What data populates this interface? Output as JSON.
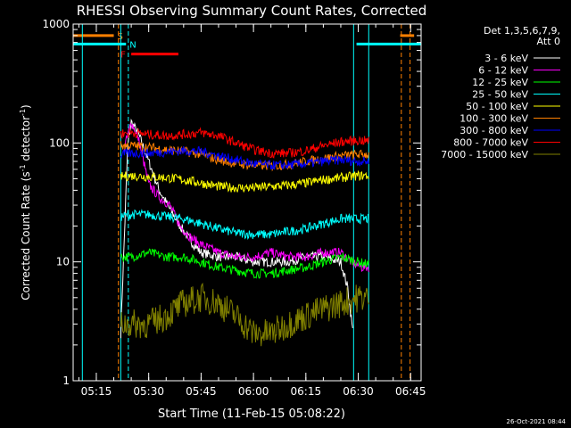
{
  "chart_data": {
    "type": "line",
    "title": "RHESSI Observing Summary Count Rates, Corrected",
    "xlabel": "Start Time (11-Feb-15 05:08:22)",
    "ylabel": "Corrected Count Rate (s⁻¹ detector⁻¹)",
    "ylabel_parts": {
      "main": "Corrected Count Rate (s",
      "sup1": "-1",
      "mid": " detector",
      "sup2": "-1",
      "end": ")"
    },
    "yscale": "log",
    "ylim": [
      1,
      1000
    ],
    "xlim": [
      "05:08:22",
      "06:48:00"
    ],
    "x_ticks": [
      "05:15",
      "05:30",
      "05:45",
      "06:00",
      "06:15",
      "06:30",
      "06:45"
    ],
    "y_ticks": [
      "1",
      "10",
      "100",
      "1000"
    ],
    "legend_header": [
      "Det 1,3,5,6,7,9,",
      "Att 0"
    ],
    "legend_position": "right",
    "timestamp": "26-Oct-2021 08:44",
    "series": [
      {
        "name": "3 - 6 keV",
        "color": "#ffffff",
        "x": [
          "05:22:00",
          "05:24:00",
          "05:25:00",
          "05:27:00",
          "05:30:00",
          "05:33:00",
          "05:36:00",
          "05:39:00",
          "05:42:00",
          "05:45:00",
          "05:50:00",
          "05:55:00",
          "06:00:00",
          "06:05:00",
          "06:10:00",
          "06:15:00",
          "06:20:00",
          "06:25:00",
          "06:27:00",
          "06:28:30"
        ],
        "y": [
          2.5,
          95,
          150,
          120,
          70,
          40,
          28,
          20,
          15,
          12,
          11,
          11,
          10,
          10,
          10,
          11,
          11,
          10,
          6,
          2.5
        ]
      },
      {
        "name": "6 - 12 keV",
        "color": "#ff00ff",
        "x": [
          "05:23:00",
          "05:25:00",
          "05:27:00",
          "05:30:00",
          "05:33:00",
          "05:36:00",
          "05:39:00",
          "05:42:00",
          "05:45:00",
          "05:50:00",
          "05:55:00",
          "06:00:00",
          "06:05:00",
          "06:10:00",
          "06:15:00",
          "06:20:00",
          "06:25:00",
          "06:28:00",
          "06:31:00",
          "06:33:00"
        ],
        "y": [
          90,
          150,
          110,
          45,
          35,
          30,
          20,
          16,
          14,
          12,
          11,
          11,
          12,
          11,
          11,
          12,
          12,
          10,
          9,
          9
        ]
      },
      {
        "name": "12 - 25 keV",
        "color": "#00ff00",
        "x": [
          "05:22:00",
          "05:25:00",
          "05:30:00",
          "05:35:00",
          "05:40:00",
          "05:45:00",
          "05:50:00",
          "05:55:00",
          "06:00:00",
          "06:05:00",
          "06:10:00",
          "06:15:00",
          "06:20:00",
          "06:25:00",
          "06:30:00",
          "06:33:00"
        ],
        "y": [
          11,
          11,
          12,
          11,
          11,
          10,
          9,
          8.5,
          8,
          8,
          8.5,
          9,
          10,
          11,
          10,
          9.5
        ]
      },
      {
        "name": "25 - 50 keV",
        "color": "#00ffff",
        "x": [
          "05:22:00",
          "05:25:00",
          "05:30:00",
          "05:35:00",
          "05:40:00",
          "05:45:00",
          "05:50:00",
          "05:55:00",
          "06:00:00",
          "06:05:00",
          "06:10:00",
          "06:15:00",
          "06:20:00",
          "06:25:00",
          "06:30:00",
          "06:33:00"
        ],
        "y": [
          24,
          25,
          25,
          24,
          23,
          21,
          19,
          17.5,
          17,
          17,
          18,
          19,
          21,
          23,
          23,
          23
        ]
      },
      {
        "name": "50 - 100 keV",
        "color": "#ffff00",
        "x": [
          "05:22:00",
          "05:25:00",
          "05:30:00",
          "05:35:00",
          "05:40:00",
          "05:45:00",
          "05:50:00",
          "05:55:00",
          "06:00:00",
          "06:05:00",
          "06:10:00",
          "06:15:00",
          "06:20:00",
          "06:25:00",
          "06:30:00",
          "06:33:00"
        ],
        "y": [
          52,
          53,
          52,
          51,
          49,
          46,
          43,
          42,
          42,
          43,
          44,
          46,
          49,
          51,
          53,
          53
        ]
      },
      {
        "name": "100 - 300 keV",
        "color": "#ff8000",
        "x": [
          "05:22:00",
          "05:25:00",
          "05:30:00",
          "05:35:00",
          "05:40:00",
          "05:45:00",
          "05:50:00",
          "05:55:00",
          "06:00:00",
          "06:05:00",
          "06:10:00",
          "06:15:00",
          "06:20:00",
          "06:25:00",
          "06:30:00",
          "06:33:00"
        ],
        "y": [
          95,
          95,
          92,
          88,
          85,
          80,
          72,
          67,
          65,
          64,
          66,
          70,
          74,
          78,
          80,
          80
        ]
      },
      {
        "name": "300 - 800 keV",
        "color": "#0000ff",
        "x": [
          "05:22:00",
          "05:25:00",
          "05:30:00",
          "05:35:00",
          "05:40:00",
          "05:45:00",
          "05:50:00",
          "05:55:00",
          "06:00:00",
          "06:05:00",
          "06:10:00",
          "06:15:00",
          "06:20:00",
          "06:25:00",
          "06:30:00",
          "06:33:00"
        ],
        "y": [
          80,
          82,
          82,
          84,
          86,
          85,
          78,
          72,
          67,
          65,
          65,
          67,
          70,
          72,
          70,
          70
        ]
      },
      {
        "name": "800 - 7000 keV",
        "color": "#ff0000",
        "x": [
          "05:22:00",
          "05:25:00",
          "05:30:00",
          "05:35:00",
          "05:40:00",
          "05:45:00",
          "05:50:00",
          "05:55:00",
          "06:00:00",
          "06:05:00",
          "06:10:00",
          "06:15:00",
          "06:20:00",
          "06:25:00",
          "06:30:00",
          "06:33:00"
        ],
        "y": [
          120,
          122,
          118,
          115,
          118,
          122,
          115,
          100,
          88,
          82,
          82,
          86,
          95,
          102,
          105,
          104
        ]
      },
      {
        "name": "7000 - 15000 keV",
        "color": "#808000",
        "x": [
          "05:22:00",
          "05:25:00",
          "05:30:00",
          "05:35:00",
          "05:40:00",
          "05:45:00",
          "05:50:00",
          "05:55:00",
          "06:00:00",
          "06:05:00",
          "06:10:00",
          "06:15:00",
          "06:20:00",
          "06:25:00",
          "06:30:00",
          "06:33:00"
        ],
        "y": [
          3,
          3,
          3,
          3.5,
          4.5,
          5,
          4.5,
          3.5,
          2.5,
          2.5,
          3,
          3.5,
          4,
          4.5,
          5,
          5
        ]
      }
    ],
    "flag_bars": [
      {
        "label": "S",
        "color": "#ff8000",
        "x_start": "05:08:22",
        "x_end": "05:20:00",
        "y": 800
      },
      {
        "label": "N",
        "color": "#00ffff",
        "x_start": "05:08:22",
        "x_end": "05:23:30",
        "y": 680
      },
      {
        "label": "F",
        "color": "#ff0000",
        "x_start": "05:25:00",
        "x_end": "05:38:30",
        "y": 560
      },
      {
        "label": "",
        "color": "#ff8000",
        "x_start": "06:42:00",
        "x_end": "06:46:00",
        "y": 800
      },
      {
        "label": "",
        "color": "#00ffff",
        "x_start": "06:29:30",
        "x_end": "06:48:00",
        "y": 680
      }
    ],
    "vertical_lines": [
      {
        "x": "05:11:00",
        "color": "#00ffff",
        "style": "solid"
      },
      {
        "x": "05:21:20",
        "color": "#ff8000",
        "style": "dashed"
      },
      {
        "x": "05:22:00",
        "color": "#00ffff",
        "style": "solid"
      },
      {
        "x": "05:24:10",
        "color": "#00ffff",
        "style": "dashed"
      },
      {
        "x": "06:28:40",
        "color": "#00ffff",
        "style": "solid"
      },
      {
        "x": "06:33:00",
        "color": "#00ffff",
        "style": "solid"
      },
      {
        "x": "06:42:20",
        "color": "#ff8000",
        "style": "dashed"
      },
      {
        "x": "06:44:50",
        "color": "#ff8000",
        "style": "dashed"
      }
    ]
  }
}
